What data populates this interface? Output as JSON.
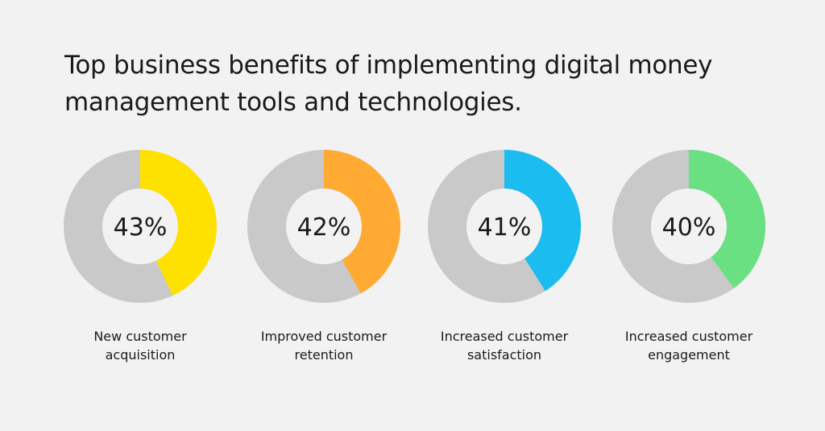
{
  "title_line1": "Top business benefits of implementing digital money",
  "title_line2": "management tools and technologies.",
  "track_color": "#c9c9c9",
  "chart_data": [
    {
      "type": "pie",
      "value": 43,
      "label": "43%",
      "caption_line1": "New customer",
      "caption_line2": "acquisition",
      "color": "#ffe100"
    },
    {
      "type": "pie",
      "value": 42,
      "label": "42%",
      "caption_line1": "Improved customer",
      "caption_line2": "retention",
      "color": "#ffaa33"
    },
    {
      "type": "pie",
      "value": 41,
      "label": "41%",
      "caption_line1": "Increased customer",
      "caption_line2": "satisfaction",
      "color": "#1bbcf0"
    },
    {
      "type": "pie",
      "value": 40,
      "label": "40%",
      "caption_line1": "Increased customer",
      "caption_line2": "engagement",
      "color": "#6be083"
    }
  ]
}
